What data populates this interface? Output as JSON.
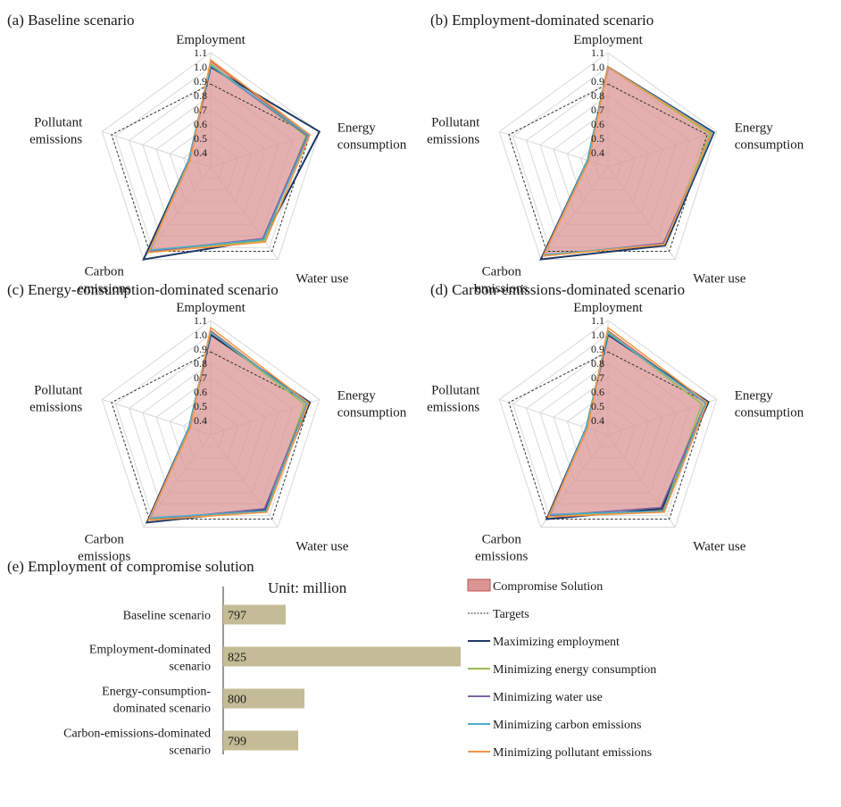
{
  "colors": {
    "compromise_fill": "#d99694",
    "compromise_stroke": "#c0504d",
    "targets": "#333333",
    "max_employment": "#1f3864",
    "min_energy": "#9bbb59",
    "min_water": "#8064a2",
    "min_carbon": "#4bacc6",
    "min_pollutant": "#f79646",
    "bar": "#c4bc96",
    "grid": "#d9d9d9"
  },
  "chart_data": [
    {
      "type": "radar",
      "title": "(a) Baseline scenario",
      "axes": [
        "Employment",
        "Energy consumption",
        "Water use",
        "Carbon emissions",
        "Pollutant emissions"
      ],
      "axis_lines": [
        [
          "Employment"
        ],
        [
          "Energy",
          "consumption"
        ],
        [
          "Water use"
        ],
        [
          "Carbon",
          "emissions"
        ],
        [
          "Pollutant",
          "emissions"
        ]
      ],
      "range": [
        0.3,
        1.1
      ],
      "ticks": [
        "1.1",
        "1.0",
        "0.9",
        "0.8",
        "0.7",
        "0.6",
        "0.5",
        "0.4"
      ],
      "series": [
        {
          "name": "Compromise Solution",
          "values": [
            1.04,
            1.02,
            0.93,
            1.03,
            0.46
          ]
        },
        {
          "name": "Targets",
          "values": [
            0.88,
            1.03,
            1.03,
            1.03,
            1.03
          ]
        },
        {
          "name": "Maximizing employment",
          "values": [
            1.0,
            1.1,
            0.93,
            1.1,
            0.46
          ]
        },
        {
          "name": "Minimizing energy consumption",
          "values": [
            1.02,
            1.0,
            0.94,
            1.04,
            0.46
          ]
        },
        {
          "name": "Minimizing water use",
          "values": [
            1.01,
            1.01,
            0.92,
            1.03,
            0.46
          ]
        },
        {
          "name": "Minimizing carbon emissions",
          "values": [
            1.01,
            1.02,
            0.93,
            1.02,
            0.46
          ]
        },
        {
          "name": "Minimizing pollutant emissions",
          "values": [
            1.05,
            1.03,
            0.95,
            1.04,
            0.45
          ]
        }
      ]
    },
    {
      "type": "radar",
      "title": "(b) Employment-dominated scenario",
      "axes": [
        "Employment",
        "Energy consumption",
        "Water use",
        "Carbon emissions",
        "Pollutant emissions"
      ],
      "axis_lines": [
        [
          "Employment"
        ],
        [
          "Energy",
          "consumption"
        ],
        [
          "Water use"
        ],
        [
          "Carbon",
          "emissions"
        ],
        [
          "Pollutant",
          "emissions"
        ]
      ],
      "range": [
        0.3,
        1.1
      ],
      "ticks": [
        "1.1",
        "1.0",
        "0.9",
        "0.8",
        "0.7",
        "0.6",
        "0.5",
        "0.4"
      ],
      "series": [
        {
          "name": "Compromise Solution",
          "values": [
            1.0,
            1.07,
            0.97,
            1.07,
            0.45
          ]
        },
        {
          "name": "Targets",
          "values": [
            0.88,
            1.03,
            1.03,
            1.03,
            1.03
          ]
        },
        {
          "name": "Maximizing employment",
          "values": [
            1.0,
            1.08,
            0.98,
            1.1,
            0.45
          ]
        },
        {
          "name": "Minimizing energy consumption",
          "values": [
            1.0,
            1.05,
            0.97,
            1.07,
            0.45
          ]
        },
        {
          "name": "Minimizing water use",
          "values": [
            1.0,
            1.07,
            0.96,
            1.07,
            0.45
          ]
        },
        {
          "name": "Minimizing carbon emissions",
          "values": [
            1.0,
            1.07,
            0.97,
            1.06,
            0.45
          ]
        },
        {
          "name": "Minimizing pollutant emissions",
          "values": [
            1.0,
            1.06,
            0.97,
            1.07,
            0.44
          ]
        }
      ]
    },
    {
      "type": "radar",
      "title": "(c) Energy-consumption-dominated scenario",
      "axes": [
        "Employment",
        "Energy consumption",
        "Water use",
        "Carbon emissions",
        "Pollutant emissions"
      ],
      "axis_lines": [
        [
          "Employment"
        ],
        [
          "Energy",
          "consumption"
        ],
        [
          "Water use"
        ],
        [
          "Carbon",
          "emissions"
        ],
        [
          "Pollutant",
          "emissions"
        ]
      ],
      "range": [
        0.3,
        1.1
      ],
      "ticks": [
        "1.1",
        "1.0",
        "0.9",
        "0.8",
        "0.7",
        "0.6",
        "0.5",
        "0.4"
      ],
      "series": [
        {
          "name": "Compromise Solution",
          "values": [
            1.03,
            1.01,
            0.96,
            1.04,
            0.46
          ]
        },
        {
          "name": "Targets",
          "values": [
            0.88,
            1.03,
            1.03,
            1.03,
            1.03
          ]
        },
        {
          "name": "Maximizing employment",
          "values": [
            1.0,
            1.03,
            0.95,
            1.06,
            0.46
          ]
        },
        {
          "name": "Minimizing energy consumption",
          "values": [
            1.02,
            0.99,
            0.96,
            1.03,
            0.46
          ]
        },
        {
          "name": "Minimizing water use",
          "values": [
            1.02,
            1.01,
            0.94,
            1.04,
            0.46
          ]
        },
        {
          "name": "Minimizing carbon emissions",
          "values": [
            1.02,
            1.01,
            0.96,
            1.02,
            0.46
          ]
        },
        {
          "name": "Minimizing pollutant emissions",
          "values": [
            1.05,
            1.02,
            0.97,
            1.04,
            0.45
          ]
        }
      ]
    },
    {
      "type": "radar",
      "title": "(d) Carbon-emissions-dominated scenario",
      "axes": [
        "Employment",
        "Energy consumption",
        "Water use",
        "Carbon emissions",
        "Pollutant emissions"
      ],
      "axis_lines": [
        [
          "Employment"
        ],
        [
          "Energy",
          "consumption"
        ],
        [
          "Water use"
        ],
        [
          "Carbon",
          "emissions"
        ],
        [
          "Pollutant",
          "emissions"
        ]
      ],
      "range": [
        0.3,
        1.1
      ],
      "ticks": [
        "1.1",
        "1.0",
        "0.9",
        "0.8",
        "0.7",
        "0.6",
        "0.5",
        "0.4"
      ],
      "series": [
        {
          "name": "Compromise Solution",
          "values": [
            1.03,
            1.02,
            0.95,
            1.0,
            0.46
          ]
        },
        {
          "name": "Targets",
          "values": [
            0.88,
            1.03,
            1.03,
            1.03,
            1.03
          ]
        },
        {
          "name": "Maximizing employment",
          "values": [
            1.0,
            1.04,
            0.94,
            1.03,
            0.46
          ]
        },
        {
          "name": "Minimizing energy consumption",
          "values": [
            1.02,
            0.99,
            0.96,
            1.0,
            0.46
          ]
        },
        {
          "name": "Minimizing water use",
          "values": [
            1.01,
            1.02,
            0.93,
            1.0,
            0.46
          ]
        },
        {
          "name": "Minimizing carbon emissions",
          "values": [
            1.01,
            1.02,
            0.96,
            0.99,
            0.46
          ]
        },
        {
          "name": "Minimizing pollutant emissions",
          "values": [
            1.05,
            1.03,
            0.97,
            1.01,
            0.45
          ]
        }
      ]
    },
    {
      "type": "bar",
      "orientation": "horizontal",
      "title": "(e) Employment of compromise solution",
      "unit_label": "Unit: million",
      "categories": [
        "Baseline scenario",
        "Employment-dominated scenario",
        "Energy-consumption-dominated scenario",
        "Carbon-emissions-dominated scenario"
      ],
      "category_lines": [
        [
          "Baseline scenario"
        ],
        [
          "Employment-dominated",
          "scenario"
        ],
        [
          "Energy-consumption-",
          "dominated scenario"
        ],
        [
          "Carbon-emissions-dominated",
          "scenario"
        ]
      ],
      "values": [
        797,
        825,
        800,
        799
      ],
      "labels": [
        "797",
        "825",
        "800",
        "799"
      ],
      "xlim": [
        787,
        829
      ]
    }
  ],
  "legend": {
    "items": [
      {
        "label": "Compromise Solution",
        "kind": "patch",
        "color_key": "compromise_fill"
      },
      {
        "label": "Targets",
        "kind": "dash",
        "color_key": "targets"
      },
      {
        "label": "Maximizing employment",
        "kind": "line",
        "color_key": "max_employment"
      },
      {
        "label": "Minimizing energy consumption",
        "kind": "line",
        "color_key": "min_energy"
      },
      {
        "label": "Minimizing water use",
        "kind": "line",
        "color_key": "min_water"
      },
      {
        "label": "Minimizing carbon emissions",
        "kind": "line",
        "color_key": "min_carbon"
      },
      {
        "label": "Minimizing pollutant emissions",
        "kind": "line",
        "color_key": "min_pollutant"
      }
    ]
  }
}
